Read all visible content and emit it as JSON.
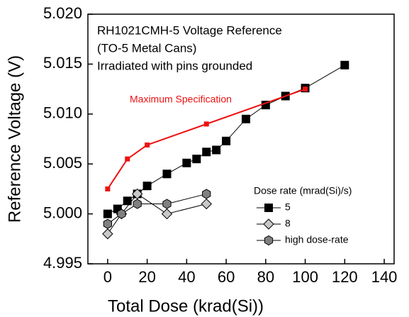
{
  "chart_data": {
    "type": "line",
    "title_lines": [
      "RH1021CMH-5 Voltage Reference",
      "(TO-5 Metal Cans)",
      "Irradiated with pins grounded"
    ],
    "x_label": "Total Dose (krad(Si))",
    "y_label": "Reference Voltage (V)",
    "legend_title": "Dose rate (mrad(Si)/s)",
    "xlim": [
      -10,
      145
    ],
    "xticks": [
      0,
      20,
      40,
      60,
      80,
      100,
      120,
      140
    ],
    "ylim": [
      4.995,
      5.02
    ],
    "yticks": [
      4.995,
      {
        "value": 5.0,
        "label": "5.000"
      },
      5.005,
      {
        "value": 5.01,
        "label": "5.010"
      },
      5.015,
      {
        "value": 5.02,
        "label": "5.020"
      }
    ],
    "series": [
      {
        "name": "5",
        "color": "#000000",
        "marker": "square",
        "legend": true,
        "x": [
          0,
          5,
          10,
          15,
          20,
          30,
          40,
          45,
          50,
          55,
          60,
          70,
          80,
          90,
          100,
          120
        ],
        "values": [
          5.0,
          5.0005,
          5.0013,
          5.002,
          5.0028,
          5.004,
          5.0051,
          5.0055,
          5.0062,
          5.0064,
          5.0073,
          5.0095,
          5.0109,
          5.0118,
          5.0126,
          5.0149
        ]
      },
      {
        "name": "8",
        "color": "#c8c8c8",
        "marker": "diamond",
        "legend": true,
        "x": [
          0,
          7,
          15,
          30,
          50
        ],
        "values": [
          4.998,
          5.0,
          5.002,
          5.0,
          5.001
        ]
      },
      {
        "name": "high dose-rate",
        "color": "#808080",
        "marker": "hexagon",
        "legend": true,
        "x": [
          0,
          7,
          15,
          30,
          50
        ],
        "values": [
          4.999,
          5.0,
          5.001,
          5.001,
          5.002
        ]
      },
      {
        "name": "Maximum Specification",
        "color": "#ee1111",
        "marker": "smallsquare",
        "legend": false,
        "x": [
          0,
          10,
          20,
          50,
          100
        ],
        "values": [
          5.0025,
          5.0055,
          5.0069,
          5.009,
          5.0125
        ]
      }
    ]
  }
}
